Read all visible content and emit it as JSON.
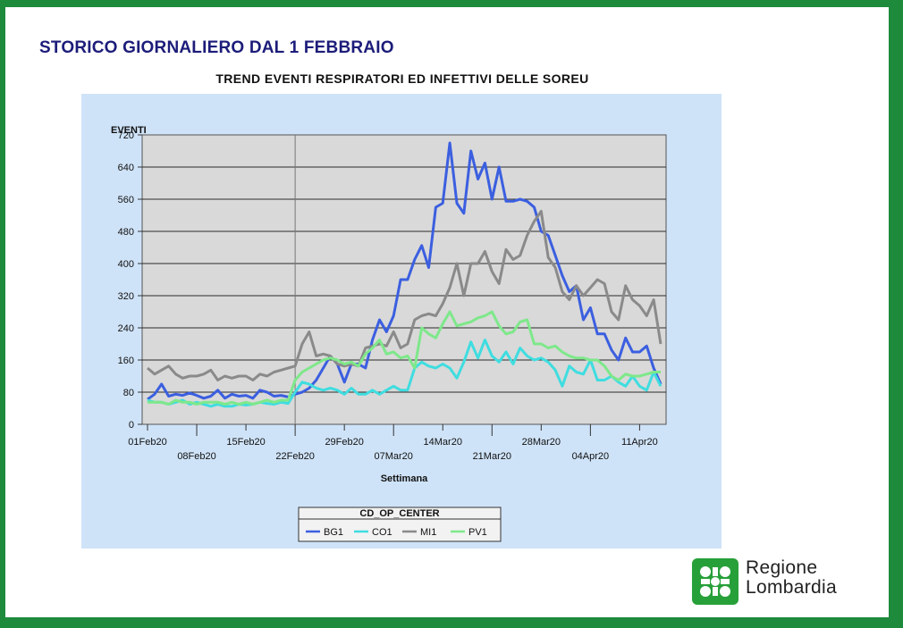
{
  "slide": {
    "title": "STORICO GIORNALIERO DAL 1 FEBBRAIO",
    "logo_line1": "Regione",
    "logo_line2": "Lombardia"
  },
  "chart_data": {
    "type": "line",
    "title": "TREND EVENTI RESPIRATORI ED INFETTIVI DELLE SOREU",
    "xlabel": "Settimana",
    "ylabel": "EVENTI",
    "ylim": [
      0,
      720
    ],
    "yticks": [
      0,
      80,
      160,
      240,
      320,
      400,
      480,
      560,
      640,
      720
    ],
    "x_ticks_upper": [
      "01Feb20",
      "15Feb20",
      "29Feb20",
      "14Mar20",
      "28Mar20",
      "11Apr20"
    ],
    "x_ticks_lower": [
      "08Feb20",
      "22Feb20",
      "07Mar20",
      "21Mar20",
      "04Apr20"
    ],
    "grid": true,
    "legend": {
      "title": "CD_OP_CENTER",
      "placement": "bottom-center"
    },
    "reference_day": 22,
    "series": [
      {
        "name": "BG1",
        "color": "#3b5fe0",
        "values": [
          62,
          75,
          100,
          70,
          75,
          72,
          78,
          72,
          65,
          70,
          85,
          65,
          75,
          70,
          72,
          65,
          85,
          80,
          70,
          72,
          68,
          75,
          80,
          90,
          110,
          140,
          170,
          150,
          105,
          150,
          150,
          140,
          210,
          260,
          230,
          270,
          360,
          360,
          410,
          445,
          390,
          540,
          550,
          700,
          550,
          525,
          680,
          610,
          650,
          560,
          640,
          555,
          555,
          560,
          555,
          540,
          480,
          470,
          420,
          370,
          330,
          345,
          260,
          290,
          225,
          225,
          185,
          160,
          215,
          180,
          180,
          195,
          140,
          100
        ]
      },
      {
        "name": "CO1",
        "color": "#3fdde0",
        "values": [
          60,
          55,
          55,
          50,
          55,
          60,
          50,
          55,
          50,
          45,
          50,
          45,
          45,
          50,
          48,
          50,
          55,
          52,
          50,
          55,
          52,
          80,
          105,
          100,
          90,
          85,
          90,
          85,
          75,
          90,
          75,
          75,
          85,
          75,
          85,
          95,
          85,
          85,
          140,
          155,
          145,
          140,
          150,
          140,
          115,
          155,
          205,
          165,
          210,
          170,
          155,
          180,
          150,
          190,
          170,
          160,
          165,
          155,
          135,
          95,
          145,
          130,
          125,
          160,
          110,
          110,
          120,
          105,
          95,
          120,
          95,
          85,
          130,
          95
        ]
      },
      {
        "name": "MI1",
        "color": "#8a8a8a",
        "values": [
          140,
          125,
          135,
          145,
          125,
          115,
          120,
          120,
          125,
          135,
          110,
          120,
          115,
          120,
          120,
          110,
          125,
          120,
          130,
          135,
          140,
          145,
          200,
          230,
          170,
          175,
          170,
          150,
          145,
          150,
          145,
          190,
          195,
          200,
          195,
          230,
          190,
          200,
          260,
          270,
          275,
          270,
          300,
          340,
          400,
          320,
          400,
          400,
          430,
          380,
          350,
          435,
          410,
          420,
          470,
          505,
          530,
          415,
          390,
          330,
          310,
          345,
          320,
          340,
          360,
          350,
          280,
          260,
          345,
          310,
          295,
          270,
          310,
          200
        ]
      },
      {
        "name": "PV1",
        "color": "#7ee88a",
        "values": [
          55,
          55,
          55,
          50,
          60,
          55,
          55,
          50,
          55,
          55,
          55,
          50,
          55,
          50,
          55,
          50,
          55,
          60,
          55,
          60,
          60,
          110,
          130,
          140,
          150,
          160,
          165,
          160,
          150,
          155,
          145,
          175,
          190,
          210,
          175,
          180,
          165,
          170,
          140,
          240,
          225,
          215,
          250,
          280,
          245,
          250,
          255,
          265,
          270,
          280,
          245,
          225,
          230,
          255,
          260,
          200,
          200,
          190,
          195,
          180,
          170,
          165,
          165,
          160,
          160,
          145,
          120,
          110,
          125,
          120,
          120,
          125,
          130,
          130
        ]
      }
    ]
  }
}
